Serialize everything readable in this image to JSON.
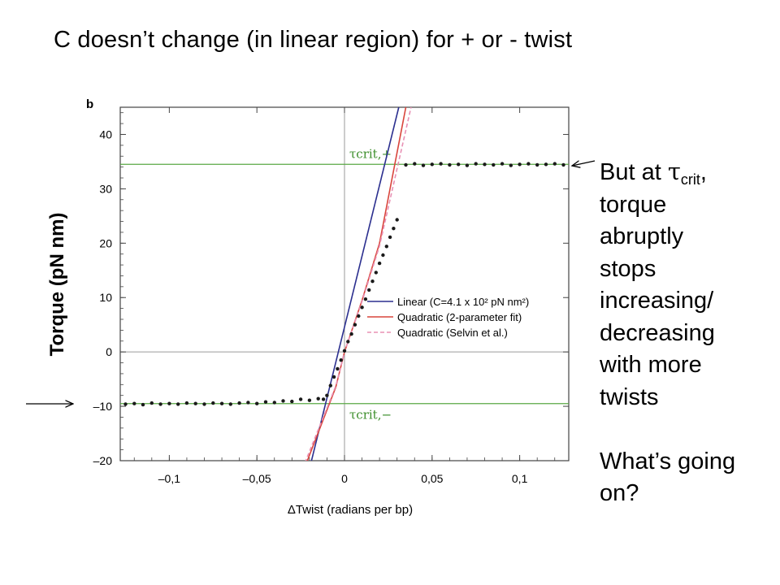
{
  "slide": {
    "title": "C doesn’t change (in linear region) for + or - twist",
    "note": {
      "line1_prefix": "But at ",
      "line1_tau": "τ",
      "line1_sub": "crit",
      "line1_suffix": ",",
      "lines": [
        "torque",
        "abruptly",
        "stops",
        "increasing/",
        "decreasing",
        "with more",
        "twists"
      ],
      "question_lines": [
        "What’s going",
        "on?"
      ]
    }
  },
  "chart_data": {
    "type": "line",
    "panel_label": "b",
    "xlabel": "ΔTwist (radians per bp)",
    "ylabel": "Torque (pN nm)",
    "xlim": [
      -0.128,
      0.128
    ],
    "ylim": [
      -20,
      45
    ],
    "x_ticks": [
      {
        "value": -0.1,
        "label": "–0,1"
      },
      {
        "value": -0.05,
        "label": "–0,05"
      },
      {
        "value": 0,
        "label": "0"
      },
      {
        "value": 0.05,
        "label": "0,05"
      },
      {
        "value": 0.1,
        "label": "0,1"
      }
    ],
    "y_ticks": [
      {
        "value": -20,
        "label": "–20"
      },
      {
        "value": -10,
        "label": "–10"
      },
      {
        "value": 0,
        "label": "0"
      },
      {
        "value": 10,
        "label": "10"
      },
      {
        "value": 20,
        "label": "20"
      },
      {
        "value": 30,
        "label": "30"
      },
      {
        "value": 40,
        "label": "40"
      }
    ],
    "grid": "zero lines only",
    "legend_position": "center-right",
    "tau_crit_plus": {
      "value": 34.5,
      "label": "τcrit,+"
    },
    "tau_crit_minus": {
      "value": -9.5,
      "label": "τcrit,−"
    },
    "series": [
      {
        "name": "Linear (C=4.1 x 10² pN nm²)",
        "color": "#2b2f8f",
        "dash": "solid",
        "x": [
          -0.02,
          0.031
        ],
        "y": [
          -21.5,
          45
        ]
      },
      {
        "name": "Quadratic (2-parameter fit)",
        "color": "#d9453c",
        "dash": "solid",
        "x": [
          -0.023,
          -0.005,
          0,
          0.01,
          0.02,
          0.035
        ],
        "y": [
          -21.5,
          -6.5,
          0,
          9.5,
          20,
          45
        ]
      },
      {
        "name": "Quadratic (Selvin et al.)",
        "color": "#e890b4",
        "dash": "dashed",
        "x": [
          -0.024,
          -0.005,
          0,
          0.01,
          0.02,
          0.038
        ],
        "y": [
          -21.5,
          -6.3,
          0,
          9.3,
          19.5,
          45
        ]
      }
    ],
    "data_points": {
      "color": "#1a1a1a",
      "x": [
        -0.125,
        -0.12,
        -0.115,
        -0.11,
        -0.105,
        -0.1,
        -0.095,
        -0.09,
        -0.085,
        -0.08,
        -0.075,
        -0.07,
        -0.065,
        -0.06,
        -0.055,
        -0.05,
        -0.045,
        -0.04,
        -0.035,
        -0.03,
        -0.025,
        -0.02,
        -0.015,
        -0.012,
        -0.01,
        -0.008,
        -0.006,
        -0.004,
        -0.002,
        0,
        0.002,
        0.004,
        0.006,
        0.008,
        0.01,
        0.012,
        0.014,
        0.016,
        0.018,
        0.02,
        0.022,
        0.024,
        0.026,
        0.028,
        0.03,
        0.035,
        0.04,
        0.045,
        0.05,
        0.055,
        0.06,
        0.065,
        0.07,
        0.075,
        0.08,
        0.085,
        0.09,
        0.095,
        0.1,
        0.105,
        0.11,
        0.115,
        0.12,
        0.125
      ],
      "y": [
        -9.6,
        -9.5,
        -9.7,
        -9.4,
        -9.6,
        -9.5,
        -9.6,
        -9.4,
        -9.5,
        -9.6,
        -9.4,
        -9.5,
        -9.6,
        -9.4,
        -9.3,
        -9.5,
        -9.2,
        -9.3,
        -9.0,
        -9.1,
        -8.7,
        -8.9,
        -8.6,
        -8.7,
        -8.0,
        -6.2,
        -4.6,
        -3.1,
        -1.5,
        0.2,
        1.9,
        3.3,
        5.0,
        6.6,
        8.2,
        9.7,
        11.4,
        13.0,
        14.6,
        16.3,
        17.8,
        19.4,
        21.1,
        22.7,
        24.3,
        34.4,
        34.6,
        34.3,
        34.5,
        34.6,
        34.4,
        34.5,
        34.3,
        34.6,
        34.5,
        34.4,
        34.6,
        34.3,
        34.5,
        34.6,
        34.4,
        34.5,
        34.6,
        34.4
      ]
    }
  }
}
